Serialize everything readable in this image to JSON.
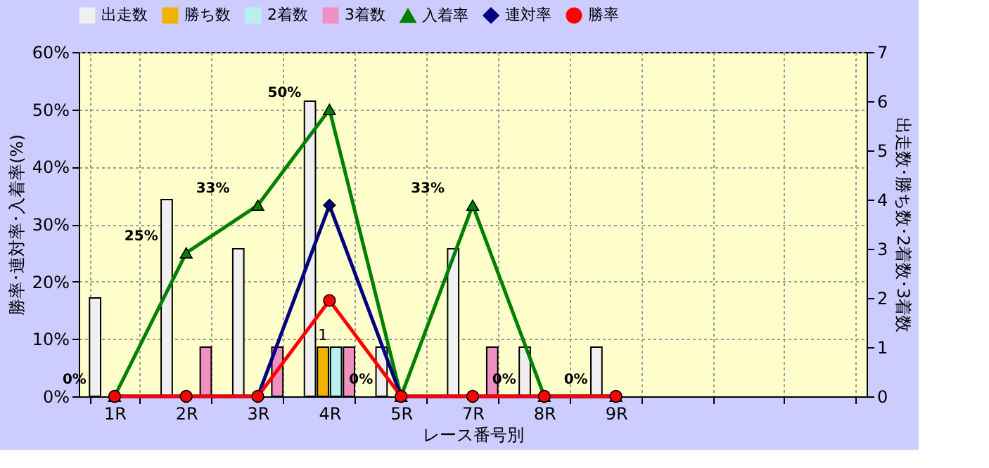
{
  "chart_data": {
    "type": "bar",
    "xlabel": "レース番号別",
    "ylabel": "勝率･連対率･入着率(%)",
    "y2label": "出走数･勝ち数･2着数･3着数",
    "categories": [
      "1R",
      "2R",
      "3R",
      "4R",
      "5R",
      "7R",
      "8R",
      "9R",
      null,
      null,
      null
    ],
    "series": [
      {
        "name": "出走数",
        "axis": "y2",
        "color": "#f0f0f0",
        "values": [
          2,
          4,
          3,
          6,
          1,
          3,
          1,
          1,
          null,
          null,
          null
        ]
      },
      {
        "name": "勝ち数",
        "axis": "y2",
        "color": "#f0b400",
        "values": [
          0,
          0,
          0,
          1,
          0,
          0,
          0,
          0,
          null,
          null,
          null
        ],
        "value_labels": [
          null,
          null,
          null,
          "1",
          null,
          null,
          null,
          null,
          null,
          null,
          null
        ]
      },
      {
        "name": "2着数",
        "axis": "y2",
        "color": "#b8f0f0",
        "values": [
          0,
          0,
          0,
          1,
          0,
          0,
          0,
          0,
          null,
          null,
          null
        ]
      },
      {
        "name": "3着数",
        "axis": "y2",
        "color": "#f090c0",
        "values": [
          0,
          1,
          1,
          1,
          0,
          1,
          0,
          0,
          null,
          null,
          null
        ]
      },
      {
        "name": "入着率",
        "type": "line",
        "color": "#008000",
        "marker": "triangle",
        "values": [
          0,
          25,
          33.3,
          50,
          0,
          33.3,
          0,
          0,
          null,
          null,
          null
        ],
        "value_labels": [
          "0%",
          "25%",
          "33%",
          "50%",
          "0%",
          "33%",
          "0%",
          "0%",
          null,
          null,
          null
        ]
      },
      {
        "name": "連対率",
        "type": "line",
        "color": "#000080",
        "marker": "diamond",
        "values": [
          0,
          0,
          0,
          33.3,
          0,
          0,
          0,
          0,
          null,
          null,
          null
        ]
      },
      {
        "name": "勝率",
        "type": "line",
        "color": "#ff0000",
        "marker": "circle",
        "values": [
          0,
          0,
          0,
          16.7,
          0,
          0,
          0,
          0,
          null,
          null,
          null
        ]
      }
    ],
    "ylim": [
      0,
      60
    ],
    "yticks": [
      {
        "value": 0,
        "label": "0%"
      },
      {
        "value": 10,
        "label": "10%"
      },
      {
        "value": 20,
        "label": "20%"
      },
      {
        "value": 30,
        "label": "30%"
      },
      {
        "value": 40,
        "label": "40%"
      },
      {
        "value": 50,
        "label": "50%"
      },
      {
        "value": 60,
        "label": "60%"
      }
    ],
    "y2lim": [
      0,
      7
    ],
    "y2ticks": [
      0,
      1,
      2,
      3,
      4,
      5,
      6,
      7
    ],
    "grid": true,
    "legend": "top"
  }
}
